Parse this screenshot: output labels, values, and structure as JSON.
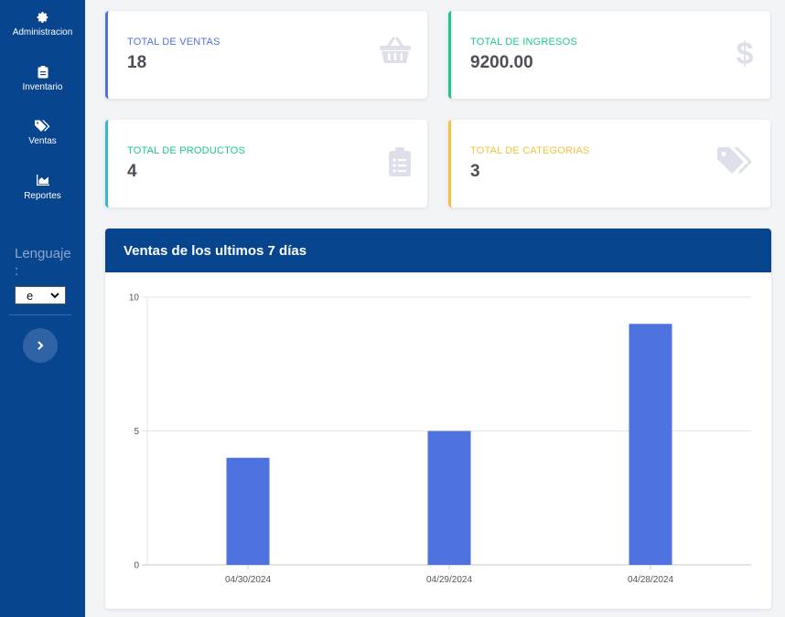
{
  "sidebar": {
    "items": [
      {
        "label": "Administracion",
        "icon": "gear-icon"
      },
      {
        "label": "Inventario",
        "icon": "clipboard-icon"
      },
      {
        "label": "Ventas",
        "icon": "tags-icon"
      },
      {
        "label": "Reportes",
        "icon": "area-chart-icon"
      }
    ],
    "language_label": "Lenguaje :",
    "language_value": "e",
    "toggle_icon": "chevron-right-icon"
  },
  "stats": [
    {
      "title": "TOTAL DE VENTAS",
      "value": "18",
      "color": "#4e73df",
      "icon": "basket-icon"
    },
    {
      "title": "TOTAL DE INGRESOS",
      "value": "9200.00",
      "color": "#1cc88a",
      "icon": "dollar-icon"
    },
    {
      "title": "TOTAL DE PRODUCTOS",
      "value": "4",
      "color": "#36b9cc",
      "icon": "clipboard-list-icon"
    },
    {
      "title": "TOTAL DE CATEGORIAS",
      "value": "3",
      "color": "#f6c23e",
      "icon": "tags-icon"
    }
  ],
  "chart": {
    "title": "Ventas de los ultimos 7 días"
  },
  "chart_data": {
    "type": "bar",
    "categories": [
      "04/30/2024",
      "04/29/2024",
      "04/28/2024"
    ],
    "values": [
      4,
      5,
      9
    ],
    "ylim": [
      0,
      10
    ],
    "yticks": [
      "0",
      "5",
      "10"
    ],
    "bar_color": "#4e73df",
    "grid": true
  }
}
